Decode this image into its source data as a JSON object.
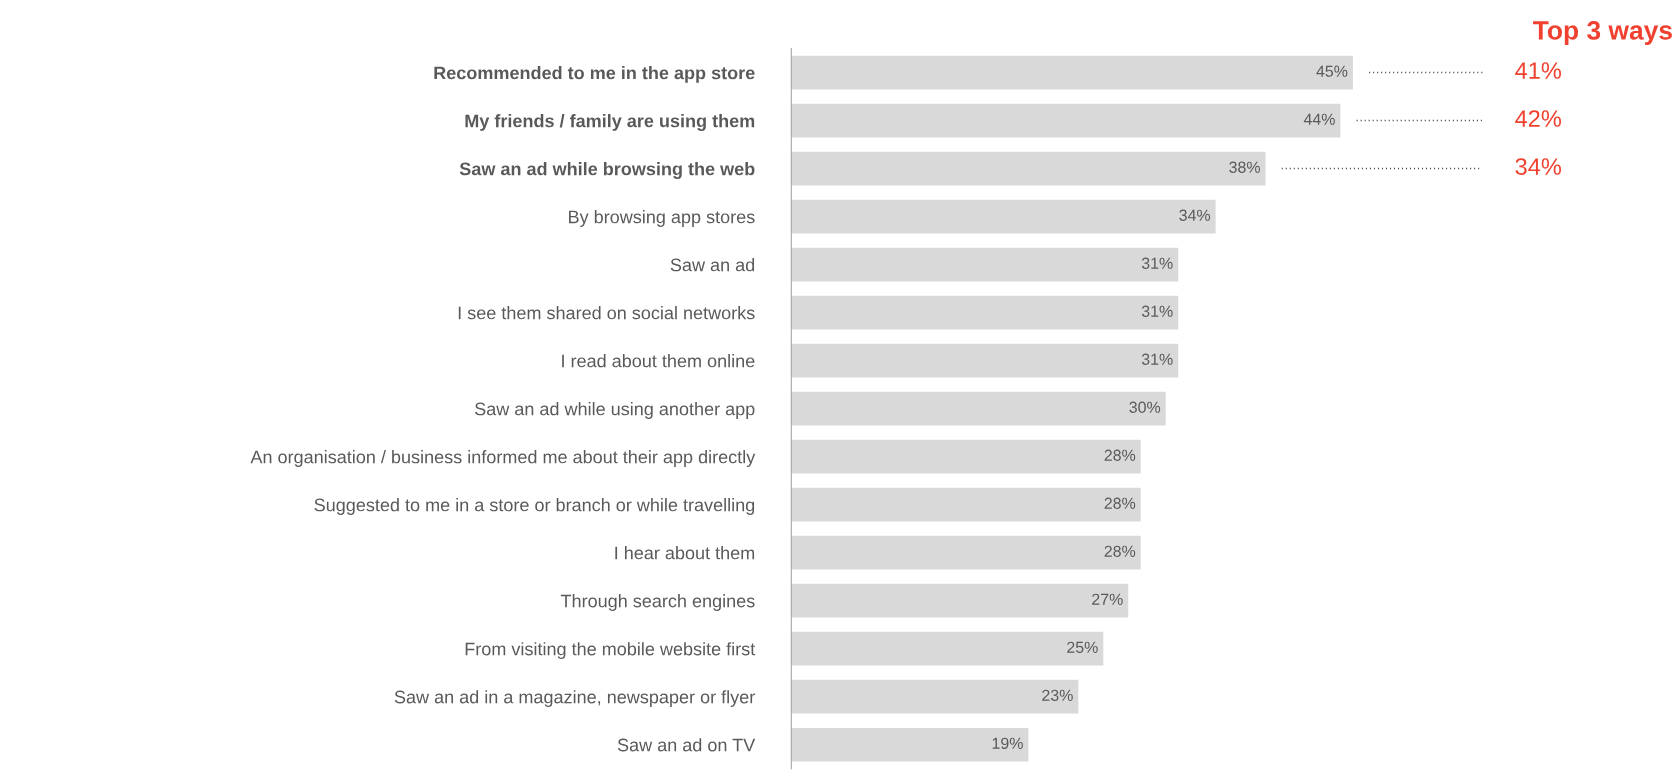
{
  "chart_data": {
    "type": "bar",
    "orientation": "horizontal",
    "value_labels": [
      "45%",
      "44%",
      "38%",
      "34%",
      "31%",
      "31%",
      "31%",
      "30%",
      "28%",
      "28%",
      "28%",
      "27%",
      "25%",
      "23%",
      "19%"
    ],
    "color": "#d9d9d9",
    "categories": [
      "Recommended to me in the app store",
      "My friends / family are using them",
      "Saw an ad while browsing the web",
      "By browsing app stores",
      "Saw an ad",
      "I see them shared on social networks",
      "I read about them online",
      "Saw an ad while using another app",
      "An organisation / business informed me about their app directly",
      "Suggested to me in a store or branch or while travelling",
      "I hear about them",
      "Through search engines",
      "From visiting the mobile website first",
      "Saw an ad in a magazine, newspaper or flyer",
      "Saw an ad on TV"
    ],
    "values": [
      45,
      44,
      38,
      34,
      31,
      31,
      31,
      30,
      28,
      28,
      28,
      27,
      25,
      23,
      19
    ],
    "annotations": [
      "Top 3 ways",
      "41%",
      "42%",
      "34%"
    ],
    "grid": false,
    "legend": false
  }
}
